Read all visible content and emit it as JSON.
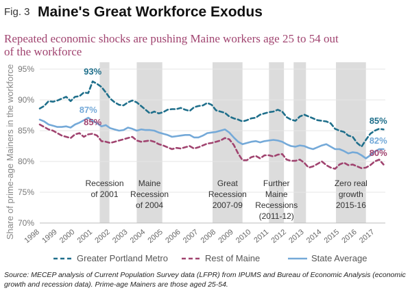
{
  "figure_label": "Fig. 3",
  "title": "Maine's Great Workforce Exodus",
  "subtitle": "Repeated economic shocks are pushing Maine  workers age 25 to 54 out of the workforce",
  "source": "Source: MECEP analysis of Current Population Survey data (LFPR) from IPUMS and Bureau of Economic Analysis (economic growth and recession data). Prime-age Mainers are those aged 25-54.",
  "chart_data": {
    "type": "line",
    "ylabel": "Share of prime-age Mainers in the workforce",
    "ylim": [
      70,
      95
    ],
    "yticks": [
      "95%",
      "90%",
      "85%",
      "80%",
      "75%",
      "70%"
    ],
    "yticks_values": [
      95,
      90,
      85,
      80,
      75,
      70
    ],
    "xlim": [
      1998,
      2017.6
    ],
    "x_tick_labels": [
      "1998",
      "1999",
      "2000",
      "2001",
      "2002",
      "2003",
      "2004",
      "2005",
      "2006",
      "2007",
      "2008",
      "2009",
      "2010",
      "2011",
      "2012",
      "2013",
      "2014",
      "2015",
      "2016",
      "2017"
    ],
    "x_tick_values": [
      1998,
      1999,
      2000,
      2001,
      2002,
      2003,
      2004,
      2005,
      2006,
      2007,
      2008,
      2009,
      2010,
      2011,
      2012,
      2013,
      2014,
      2015,
      2016,
      2017
    ],
    "legend_position": "bottom",
    "colors": {
      "greater_portland": "#1f6f8b",
      "rest_of_maine": "#a0436f",
      "state_average": "#74a9d8",
      "shade": "#dcdcdc"
    },
    "shaded_periods": [
      {
        "start": 2001.4,
        "end": 2001.95,
        "label": [
          "Recession",
          "of 2001"
        ]
      },
      {
        "start": 2003.5,
        "end": 2004.95,
        "label": [
          "Maine",
          "Recession",
          "of 2004"
        ]
      },
      {
        "start": 2007.8,
        "end": 2009.5,
        "label": [
          "Great",
          "Recession",
          "2007-09"
        ]
      },
      {
        "start": 2011.0,
        "end": 2011.85,
        "label": [
          "Further",
          "Maine",
          "Recessions",
          "(2011-12)"
        ]
      },
      {
        "start": 2012.4,
        "end": 2013.1,
        "label": []
      },
      {
        "start": 2014.8,
        "end": 2016.5,
        "label": [
          "Zero real",
          "growth",
          "2015-16"
        ]
      }
    ],
    "series": [
      {
        "name": "Greater Portland Metro",
        "style": "dashed",
        "x": [
          1998,
          1998.25,
          1998.5,
          1998.75,
          1999,
          1999.25,
          1999.5,
          1999.75,
          2000,
          2000.25,
          2000.5,
          2000.75,
          2001,
          2001.25,
          2001.5,
          2001.75,
          2002,
          2002.25,
          2002.5,
          2002.75,
          2003,
          2003.25,
          2003.5,
          2003.75,
          2004,
          2004.25,
          2004.5,
          2004.75,
          2005,
          2005.25,
          2005.5,
          2005.75,
          2006,
          2006.25,
          2006.5,
          2006.75,
          2007,
          2007.25,
          2007.5,
          2007.75,
          2008,
          2008.25,
          2008.5,
          2008.75,
          2009,
          2009.25,
          2009.5,
          2009.75,
          2010,
          2010.25,
          2010.5,
          2010.75,
          2011,
          2011.25,
          2011.5,
          2011.75,
          2012,
          2012.25,
          2012.5,
          2012.75,
          2013,
          2013.25,
          2013.5,
          2013.75,
          2014,
          2014.25,
          2014.5,
          2014.75,
          2015,
          2015.25,
          2015.5,
          2015.75,
          2016,
          2016.25,
          2016.5,
          2016.75,
          2017,
          2017.25,
          2017.5
        ],
        "values": [
          88.6,
          89.0,
          89.8,
          89.7,
          89.9,
          90.2,
          90.5,
          89.8,
          90.5,
          90.6,
          91.2,
          91.1,
          93.0,
          92.6,
          92.1,
          91.2,
          90.2,
          89.6,
          89.2,
          89.1,
          89.6,
          89.9,
          89.6,
          89.0,
          88.4,
          87.8,
          88.1,
          87.8,
          88.0,
          88.4,
          88.5,
          88.5,
          88.7,
          88.4,
          88.2,
          88.8,
          89.0,
          89.1,
          89.5,
          89.2,
          88.3,
          88.1,
          87.9,
          87.3,
          87.0,
          86.8,
          86.5,
          86.7,
          87.0,
          87.1,
          87.6,
          87.8,
          88.0,
          88.1,
          88.4,
          88.1,
          87.2,
          86.8,
          86.6,
          87.3,
          87.6,
          87.3,
          87.0,
          86.7,
          86.6,
          86.5,
          86.2,
          85.3,
          85.0,
          84.8,
          84.2,
          84.0,
          83.0,
          82.4,
          83.5,
          84.5,
          85.0,
          85.3,
          85.2
        ],
        "data_labels": [
          {
            "x": 2001,
            "y": 93,
            "text": "93%"
          },
          {
            "x": 2017.2,
            "y": 85,
            "text": "85%"
          }
        ]
      },
      {
        "name": "Rest of Maine",
        "style": "dashed",
        "x": [
          1998,
          1998.25,
          1998.5,
          1998.75,
          1999,
          1999.25,
          1999.5,
          1999.75,
          2000,
          2000.25,
          2000.5,
          2000.75,
          2001,
          2001.25,
          2001.5,
          2001.75,
          2002,
          2002.25,
          2002.5,
          2002.75,
          2003,
          2003.25,
          2003.5,
          2003.75,
          2004,
          2004.25,
          2004.5,
          2004.75,
          2005,
          2005.25,
          2005.5,
          2005.75,
          2006,
          2006.25,
          2006.5,
          2006.75,
          2007,
          2007.25,
          2007.5,
          2007.75,
          2008,
          2008.25,
          2008.5,
          2008.75,
          2009,
          2009.25,
          2009.5,
          2009.75,
          2010,
          2010.25,
          2010.5,
          2010.75,
          2011,
          2011.25,
          2011.5,
          2011.75,
          2012,
          2012.25,
          2012.5,
          2012.75,
          2013,
          2013.25,
          2013.5,
          2013.75,
          2014,
          2014.25,
          2014.5,
          2014.75,
          2015,
          2015.25,
          2015.5,
          2015.75,
          2016,
          2016.25,
          2016.5,
          2016.75,
          2017,
          2017.25,
          2017.5
        ],
        "values": [
          86.0,
          85.6,
          85.2,
          85.0,
          84.6,
          84.2,
          84.0,
          83.8,
          84.4,
          84.6,
          84.0,
          84.4,
          84.5,
          84.2,
          83.3,
          83.2,
          83.0,
          83.2,
          83.4,
          83.6,
          83.8,
          84.0,
          83.4,
          83.2,
          83.3,
          83.4,
          83.2,
          82.8,
          82.6,
          82.3,
          82.0,
          82.2,
          82.1,
          82.3,
          82.5,
          82.1,
          82.3,
          82.6,
          82.9,
          83.0,
          83.2,
          83.4,
          83.8,
          83.6,
          82.7,
          81.3,
          80.2,
          80.2,
          80.7,
          80.9,
          80.5,
          81.0,
          81.0,
          80.8,
          81.1,
          81.2,
          80.3,
          80.1,
          80.1,
          80.3,
          79.8,
          79.0,
          79.2,
          79.6,
          80.0,
          79.4,
          79.0,
          78.8,
          79.5,
          79.8,
          79.4,
          79.5,
          79.2,
          78.9,
          79.0,
          79.4,
          80.0,
          80.3,
          79.5
        ],
        "data_labels": [
          {
            "x": 2001,
            "y": 85,
            "text": "85%"
          },
          {
            "x": 2017.2,
            "y": 80,
            "text": "80%"
          }
        ]
      },
      {
        "name": "State Average",
        "style": "solid",
        "x": [
          1998,
          1998.25,
          1998.5,
          1998.75,
          1999,
          1999.25,
          1999.5,
          1999.75,
          2000,
          2000.25,
          2000.5,
          2000.75,
          2001,
          2001.25,
          2001.5,
          2001.75,
          2002,
          2002.25,
          2002.5,
          2002.75,
          2003,
          2003.25,
          2003.5,
          2003.75,
          2004,
          2004.25,
          2004.5,
          2004.75,
          2005,
          2005.25,
          2005.5,
          2005.75,
          2006,
          2006.25,
          2006.5,
          2006.75,
          2007,
          2007.25,
          2007.5,
          2007.75,
          2008,
          2008.25,
          2008.5,
          2008.75,
          2009,
          2009.25,
          2009.5,
          2009.75,
          2010,
          2010.25,
          2010.5,
          2010.75,
          2011,
          2011.25,
          2011.5,
          2011.75,
          2012,
          2012.25,
          2012.5,
          2012.75,
          2013,
          2013.25,
          2013.5,
          2013.75,
          2014,
          2014.25,
          2014.5,
          2014.75,
          2015,
          2015.25,
          2015.5,
          2015.75,
          2016,
          2016.25,
          2016.5,
          2016.75,
          2017,
          2017.25,
          2017.5
        ],
        "values": [
          86.8,
          86.5,
          86.0,
          85.8,
          85.6,
          85.6,
          85.7,
          85.5,
          86.0,
          86.3,
          86.7,
          87.1,
          86.6,
          86.2,
          85.7,
          85.9,
          85.4,
          85.2,
          85.0,
          85.1,
          85.5,
          85.3,
          85.0,
          85.2,
          85.1,
          85.1,
          85.0,
          84.7,
          84.5,
          84.3,
          84.0,
          84.1,
          84.2,
          84.3,
          84.3,
          83.9,
          83.9,
          84.2,
          84.6,
          84.7,
          84.8,
          85.0,
          85.2,
          84.7,
          83.9,
          83.2,
          82.8,
          83.0,
          83.2,
          83.3,
          83.1,
          83.3,
          83.4,
          83.5,
          83.4,
          83.2,
          82.8,
          82.5,
          82.4,
          82.6,
          82.5,
          82.2,
          82.0,
          82.3,
          82.6,
          82.8,
          82.4,
          82.0,
          82.0,
          81.7,
          81.3,
          81.5,
          81.4,
          81.0,
          80.5,
          81.0,
          81.6,
          82.0,
          82.0
        ],
        "data_labels": [
          {
            "x": 2000.75,
            "y": 87,
            "text": "87%"
          },
          {
            "x": 2017.2,
            "y": 82,
            "text": "82%"
          }
        ]
      }
    ]
  }
}
